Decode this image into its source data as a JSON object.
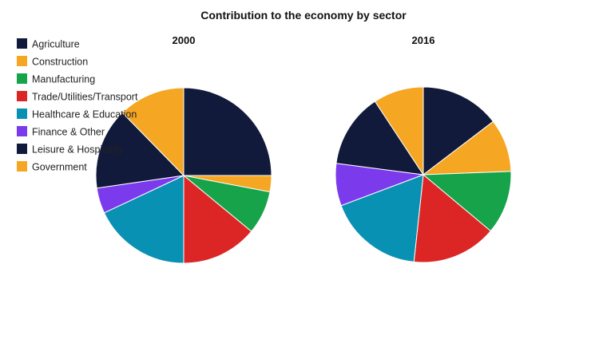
{
  "chart_data": {
    "type": "pie",
    "title": "Contribution to the economy by sector",
    "categories": [
      "Agriculture",
      "Construction",
      "Manufacturing",
      "Trade/Utilities/Transport",
      "Healthcare & Education",
      "Finance & Other",
      "Leisure & Hospitality",
      "Government"
    ],
    "colors": [
      "#111a3b",
      "#f5a623",
      "#16a34a",
      "#dc2626",
      "#0891b2",
      "#7c3aed",
      "#111a3b",
      "#f5a623"
    ],
    "legend_position": "top-left",
    "series": [
      {
        "name": "2000",
        "values": [
          25.0,
          3.0,
          8.0,
          14.0,
          18.0,
          4.7,
          15.0,
          12.3
        ]
      },
      {
        "name": "2016",
        "values": [
          15.0,
          10.0,
          12.0,
          16.0,
          18.0,
          8.0,
          14.0,
          9.5
        ]
      }
    ]
  }
}
